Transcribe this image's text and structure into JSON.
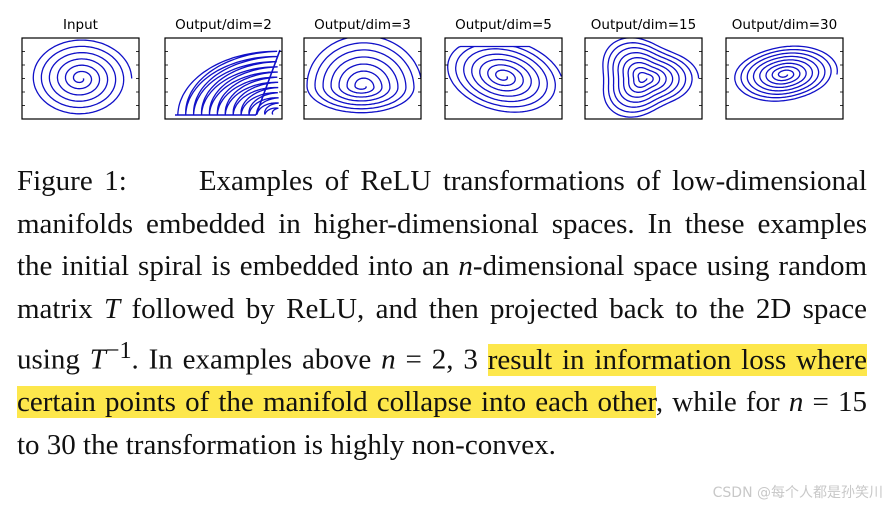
{
  "figure": {
    "panels": [
      {
        "title": "Input",
        "kind": "input"
      },
      {
        "title": "Output/dim=2",
        "kind": "dim2"
      },
      {
        "title": "Output/dim=3",
        "kind": "dim3"
      },
      {
        "title": "Output/dim=5",
        "kind": "dim5"
      },
      {
        "title": "Output/dim=15",
        "kind": "dim15"
      },
      {
        "title": "Output/dim=30",
        "kind": "dim30"
      }
    ],
    "spiral_color": "#1010c8"
  },
  "caption": {
    "label": "Figure 1:",
    "t1": "Examples of ReLU transformations of low-dimensional manifolds embedded in higher-dimensional spaces. In these examples the initial spiral is embedded into an ",
    "n1": "n",
    "t2": "-dimensional space using random matrix ",
    "T1": "T",
    "t3": " followed by ReLU, and then projected back to the 2D space using ",
    "T2": "T",
    "sup": "−1",
    "t4": ". In examples above ",
    "n2": "n",
    "t5": " = 2, 3 ",
    "highlight": "result in information loss where certain points of the manifold collapse into each other",
    "t6": ", while for ",
    "n3": "n",
    "t7": " = 15 to 30 the transformation is highly non-convex."
  },
  "watermark": "CSDN @每个人都是孙笑川",
  "highlight_color": "#fde74c"
}
